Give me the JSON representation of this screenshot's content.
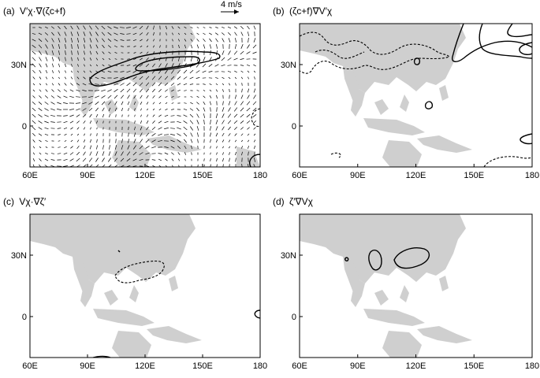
{
  "figure": {
    "panels": [
      {
        "id": "a",
        "label": "(a)",
        "title": "V′χ·∇(ζc+f)",
        "has_vectors": true
      },
      {
        "id": "b",
        "label": "(b)",
        "title": "(ζc+f)∇V′χ",
        "has_vectors": false
      },
      {
        "id": "c",
        "label": "(c)",
        "title": "Vχ·∇ζ′",
        "has_vectors": false
      },
      {
        "id": "d",
        "label": "(d)",
        "title": "ζ′∇Vχ",
        "has_vectors": false
      }
    ],
    "x_ticks": [
      "60E",
      "90E",
      "120E",
      "150E",
      "180"
    ],
    "x_tick_values": [
      60,
      90,
      120,
      150,
      180
    ],
    "y_ticks": [
      "30N",
      "0"
    ],
    "y_tick_values": [
      30,
      0
    ],
    "lon_range": [
      60,
      180
    ],
    "lat_range": [
      -20,
      50
    ],
    "reference_vector": {
      "label": "4 m/s",
      "magnitude": 4
    },
    "colors": {
      "land": "#cfcfcf",
      "contour": "#000000",
      "frame": "#000000"
    }
  }
}
